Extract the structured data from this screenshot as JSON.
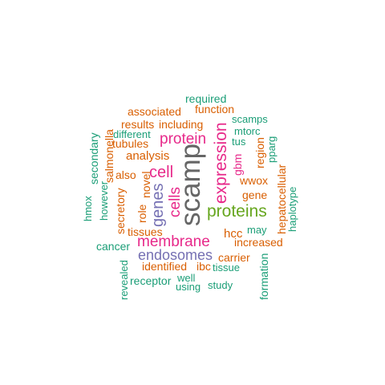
{
  "colors": {
    "teal": "#1b9e77",
    "orange": "#d95f02",
    "purple": "#7570b3",
    "magenta": "#e7298a",
    "green": "#66a61e",
    "gray": "#666666"
  },
  "words": [
    {
      "text": "required",
      "color": "teal"
    },
    {
      "text": "associated",
      "color": "orange"
    },
    {
      "text": "function",
      "color": "orange"
    },
    {
      "text": "scamps",
      "color": "teal"
    },
    {
      "text": "results",
      "color": "orange"
    },
    {
      "text": "including",
      "color": "orange"
    },
    {
      "text": "mtorc",
      "color": "teal"
    },
    {
      "text": "different",
      "color": "teal"
    },
    {
      "text": "tubules",
      "color": "orange"
    },
    {
      "text": "protein",
      "color": "magenta"
    },
    {
      "text": "tus",
      "color": "teal"
    },
    {
      "text": "analysis",
      "color": "orange"
    },
    {
      "text": "also",
      "color": "orange"
    },
    {
      "text": "cell",
      "color": "magenta"
    },
    {
      "text": "wwox",
      "color": "orange"
    },
    {
      "text": "gene",
      "color": "orange"
    },
    {
      "text": "proteins",
      "color": "green"
    },
    {
      "text": "may",
      "color": "teal"
    },
    {
      "text": "hcc",
      "color": "orange"
    },
    {
      "text": "tissues",
      "color": "orange"
    },
    {
      "text": "increased",
      "color": "orange"
    },
    {
      "text": "membrane",
      "color": "magenta"
    },
    {
      "text": "cancer",
      "color": "teal"
    },
    {
      "text": "endosomes",
      "color": "purple"
    },
    {
      "text": "carrier",
      "color": "orange"
    },
    {
      "text": "identified",
      "color": "orange"
    },
    {
      "text": "ibc",
      "color": "orange"
    },
    {
      "text": "tissue",
      "color": "teal"
    },
    {
      "text": "receptor",
      "color": "teal"
    },
    {
      "text": "well",
      "color": "teal"
    },
    {
      "text": "using",
      "color": "teal"
    },
    {
      "text": "study",
      "color": "teal"
    },
    {
      "text": "salmonella",
      "color": "orange"
    },
    {
      "text": "secondary",
      "color": "teal"
    },
    {
      "text": "hmox",
      "color": "teal"
    },
    {
      "text": "however",
      "color": "teal"
    },
    {
      "text": "secretory",
      "color": "orange"
    },
    {
      "text": "role",
      "color": "orange"
    },
    {
      "text": "novel",
      "color": "orange"
    },
    {
      "text": "genes",
      "color": "purple"
    },
    {
      "text": "cells",
      "color": "magenta"
    },
    {
      "text": "scamp",
      "color": "gray"
    },
    {
      "text": "expression",
      "color": "magenta"
    },
    {
      "text": "gbm",
      "color": "magenta"
    },
    {
      "text": "region",
      "color": "orange"
    },
    {
      "text": "pparg",
      "color": "teal"
    },
    {
      "text": "hepatocellular",
      "color": "orange"
    },
    {
      "text": "haplotype",
      "color": "teal"
    },
    {
      "text": "revealed",
      "color": "teal"
    },
    {
      "text": "formation",
      "color": "teal"
    }
  ]
}
